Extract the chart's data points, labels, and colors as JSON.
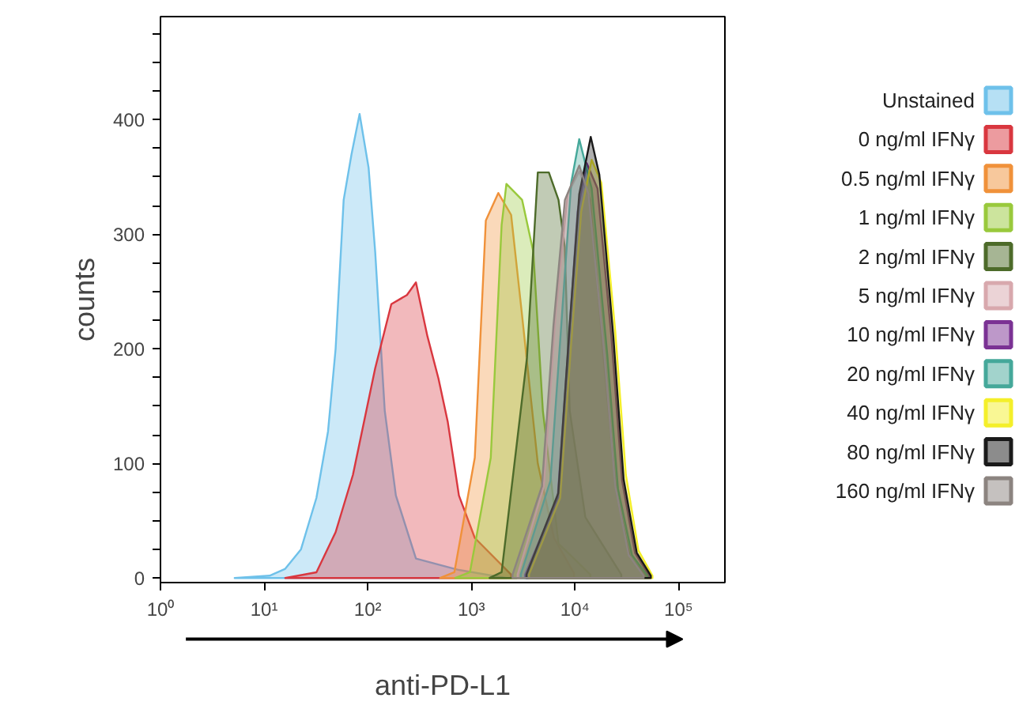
{
  "chart_data": {
    "type": "area",
    "xlabel": "anti-PD-L1",
    "ylabel": "counts",
    "log": "x",
    "grid": false,
    "legend": "right",
    "xlim": [
      1,
      280000
    ],
    "ylim": [
      -4,
      490
    ],
    "xticks": [
      {
        "value": 1,
        "label": "10⁰"
      },
      {
        "value": 10,
        "label": "10¹"
      },
      {
        "value": 100,
        "label": "10²"
      },
      {
        "value": 1000,
        "label": "10³"
      },
      {
        "value": 10000,
        "label": "10⁴"
      },
      {
        "value": 100000,
        "label": "10⁵"
      }
    ],
    "yticks": [
      0,
      {
        "value": 25,
        "label": null
      },
      {
        "value": 50,
        "label": null
      },
      {
        "value": 75,
        "label": null
      },
      100,
      {
        "value": 125,
        "label": null
      },
      {
        "value": 150,
        "label": null
      },
      {
        "value": 175,
        "label": null
      },
      200,
      {
        "value": 225,
        "label": null
      },
      {
        "value": 250,
        "label": null
      },
      {
        "value": 275,
        "label": null
      },
      300,
      {
        "value": 325,
        "label": null
      },
      {
        "value": 350,
        "label": null
      },
      {
        "value": 375,
        "label": null
      },
      400,
      {
        "value": 425,
        "label": null
      },
      {
        "value": 450,
        "label": null
      },
      {
        "value": 475,
        "label": null
      }
    ],
    "series": [
      {
        "name": "Unstained",
        "color": "#6ec1ea",
        "x": [
          5.2,
          11.3,
          16,
          22.7,
          32,
          41.4,
          49,
          58.6,
          69.8,
          83.5,
          102,
          118,
          146,
          187,
          292,
          759,
          2180
        ],
        "values": [
          0,
          2,
          8,
          25,
          70,
          128,
          200,
          330,
          370,
          405,
          358,
          285,
          146,
          72,
          17,
          7,
          0
        ]
      },
      {
        "name": "0 ng/ml IFNγ",
        "color": "#d9373f",
        "x": [
          16,
          32,
          49,
          72,
          118,
          169,
          239,
          292,
          377,
          482,
          593,
          759,
          1080,
          2420
        ],
        "values": [
          0,
          5,
          40,
          90,
          183,
          239,
          247,
          258,
          211,
          174,
          136,
          72,
          35,
          3
        ]
      },
      {
        "name": "0.5 ng/ml IFNγ",
        "color": "#f0913a",
        "x": [
          500,
          686,
          1080,
          1380,
          1820,
          2420,
          3090,
          4380,
          6280,
          9800
        ],
        "values": [
          0,
          5,
          105,
          312,
          336,
          317,
          229,
          100,
          35,
          4
        ]
      },
      {
        "name": "1 ng/ml IFNγ",
        "color": "#99c93c",
        "x": [
          700,
          970,
          1540,
          1960,
          2180,
          3090,
          3960,
          4900,
          6940,
          14100
        ],
        "values": [
          0,
          5,
          105,
          308,
          344,
          330,
          285,
          146,
          30,
          3
        ]
      },
      {
        "name": "2 ng/ml IFNγ",
        "color": "#4d6b2a",
        "x": [
          1500,
          1960,
          3440,
          4380,
          5600,
          6940,
          7980,
          8900,
          12600,
          28000
        ],
        "values": [
          0,
          5,
          192,
          354,
          354,
          330,
          289,
          146,
          53,
          3
        ]
      },
      {
        "name": "5 ng/ml IFNγ",
        "color": "#d8a8ad",
        "x": [
          2800,
          5000,
          6500,
          8500,
          11000,
          14000,
          19000,
          25000,
          34000,
          48000
        ],
        "values": [
          3,
          80,
          230,
          335,
          355,
          330,
          190,
          75,
          18,
          2
        ]
      },
      {
        "name": "10 ng/ml IFNγ",
        "color": "#7b3294",
        "x": [
          3300,
          6800,
          8600,
          10600,
          13000,
          16500,
          22500,
          28500,
          38000,
          52000
        ],
        "values": [
          3,
          70,
          200,
          320,
          362,
          340,
          210,
          85,
          22,
          2
        ]
      },
      {
        "name": "20 ng/ml IFNγ",
        "color": "#45a89a",
        "x": [
          3000,
          5800,
          7500,
          9200,
          11000,
          14500,
          20500,
          26000,
          35500,
          50000
        ],
        "values": [
          3,
          85,
          230,
          345,
          383,
          340,
          195,
          78,
          20,
          2
        ]
      },
      {
        "name": "40 ng/ml IFNγ",
        "color": "#f4ef2a",
        "x": [
          3600,
          7200,
          9200,
          11500,
          14500,
          18000,
          24500,
          31000,
          41000,
          56000
        ],
        "values": [
          3,
          70,
          205,
          320,
          365,
          345,
          215,
          90,
          24,
          2
        ]
      },
      {
        "name": "80 ng/ml IFNγ",
        "color": "#1a1a1a",
        "x": [
          3400,
          6900,
          8800,
          11000,
          14200,
          17200,
          23500,
          29500,
          39500,
          54000
        ],
        "values": [
          3,
          74,
          215,
          335,
          385,
          352,
          210,
          86,
          22,
          2
        ]
      },
      {
        "name": "160 ng/ml IFNγ",
        "color": "#8c8480",
        "x": [
          2500,
          4800,
          6200,
          8000,
          11000,
          13500,
          19000,
          24500,
          33000,
          46000
        ],
        "values": [
          3,
          80,
          220,
          330,
          360,
          335,
          200,
          80,
          20,
          2
        ]
      }
    ]
  }
}
